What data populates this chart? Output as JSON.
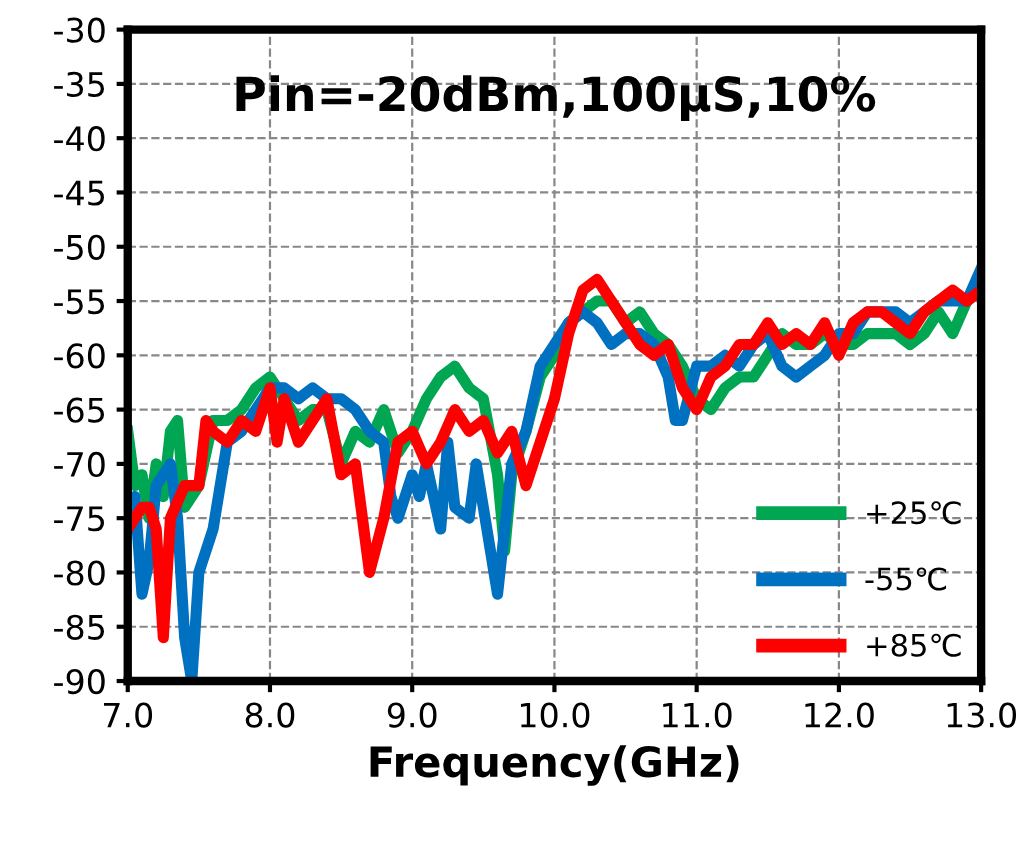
{
  "chart_data": {
    "type": "line",
    "xlabel": "Frequency(GHz)",
    "annotations": [
      "Pin=-20dBm,100µS,10%"
    ],
    "xlim": [
      7.0,
      13.0
    ],
    "ylim": [
      -90,
      -30
    ],
    "xticks": [
      {
        "value": 7,
        "label": "7.0"
      },
      {
        "value": 8,
        "label": "8.0"
      },
      {
        "value": 9,
        "label": "9.0"
      },
      {
        "value": 10,
        "label": "10.0"
      },
      {
        "value": 11,
        "label": "11.0"
      },
      {
        "value": 12,
        "label": "12.0"
      },
      {
        "value": 13,
        "label": "13.0"
      }
    ],
    "yticks": [
      -90,
      -85,
      -80,
      -75,
      -70,
      -65,
      -60,
      -55,
      -50,
      -45,
      -40,
      -35,
      -30
    ],
    "grid": true,
    "legend": "bottom right",
    "marker": "none",
    "line_style": "solid",
    "series": [
      {
        "name": "+25℃",
        "color": "#00a651",
        "x": [
          7.0,
          7.05,
          7.1,
          7.15,
          7.2,
          7.25,
          7.3,
          7.35,
          7.4,
          7.5,
          7.6,
          7.7,
          7.8,
          7.9,
          8.0,
          8.1,
          8.2,
          8.3,
          8.4,
          8.5,
          8.6,
          8.7,
          8.8,
          8.9,
          9.0,
          9.1,
          9.2,
          9.3,
          9.4,
          9.5,
          9.6,
          9.65,
          9.7,
          9.8,
          9.9,
          10.0,
          10.1,
          10.2,
          10.3,
          10.4,
          10.5,
          10.6,
          10.7,
          10.8,
          10.9,
          11.0,
          11.1,
          11.2,
          11.3,
          11.4,
          11.5,
          11.6,
          11.7,
          11.8,
          11.9,
          12.0,
          12.1,
          12.2,
          12.3,
          12.4,
          12.5,
          12.6,
          12.7,
          12.8,
          12.9,
          13.0
        ],
        "values": [
          -67,
          -72,
          -71,
          -75,
          -70,
          -73,
          -67,
          -66,
          -74,
          -72,
          -66,
          -66,
          -65,
          -63,
          -62,
          -64,
          -66,
          -65,
          -65,
          -70,
          -67,
          -68,
          -65,
          -69,
          -67,
          -64,
          -62,
          -61,
          -63,
          -64,
          -71,
          -78,
          -71,
          -67,
          -62,
          -60,
          -57,
          -56,
          -55,
          -55,
          -57,
          -56,
          -58,
          -59,
          -61,
          -64,
          -65,
          -63,
          -62,
          -62,
          -60,
          -58,
          -59,
          -59,
          -58,
          -59,
          -59,
          -58,
          -58,
          -58,
          -59,
          -58,
          -56,
          -58,
          -55,
          -54
        ]
      },
      {
        "name": "-55℃",
        "color": "#0070c0",
        "x": [
          7.0,
          7.05,
          7.1,
          7.15,
          7.2,
          7.3,
          7.35,
          7.4,
          7.45,
          7.5,
          7.6,
          7.7,
          7.8,
          7.9,
          8.0,
          8.1,
          8.2,
          8.3,
          8.4,
          8.5,
          8.6,
          8.7,
          8.8,
          8.85,
          8.9,
          9.0,
          9.05,
          9.1,
          9.2,
          9.25,
          9.3,
          9.4,
          9.45,
          9.6,
          9.7,
          9.8,
          9.9,
          10.0,
          10.1,
          10.2,
          10.3,
          10.4,
          10.5,
          10.6,
          10.7,
          10.8,
          10.85,
          10.9,
          11.0,
          11.1,
          11.2,
          11.3,
          11.4,
          11.5,
          11.6,
          11.7,
          11.8,
          11.9,
          12.0,
          12.1,
          12.2,
          12.3,
          12.4,
          12.5,
          12.6,
          12.7,
          12.8,
          12.9,
          13.0
        ],
        "values": [
          -74,
          -73,
          -82,
          -79,
          -72,
          -70,
          -75,
          -86,
          -90,
          -80,
          -76,
          -68,
          -67,
          -65,
          -63,
          -63,
          -64,
          -63,
          -64,
          -64,
          -65,
          -67,
          -68,
          -73,
          -75,
          -71,
          -73,
          -70,
          -76,
          -68,
          -74,
          -75,
          -70,
          -82,
          -70,
          -67,
          -61,
          -59,
          -57,
          -56,
          -57,
          -59,
          -58,
          -58,
          -59,
          -62,
          -66,
          -66,
          -61,
          -61,
          -60,
          -61,
          -59,
          -58,
          -61,
          -62,
          -61,
          -60,
          -58,
          -58,
          -56,
          -56,
          -56,
          -57,
          -56,
          -55,
          -55,
          -55,
          -52
        ]
      },
      {
        "name": "+85℃",
        "color": "#ff0000",
        "x": [
          7.0,
          7.1,
          7.15,
          7.2,
          7.25,
          7.3,
          7.4,
          7.5,
          7.55,
          7.6,
          7.7,
          7.8,
          7.9,
          8.0,
          8.05,
          8.1,
          8.2,
          8.3,
          8.4,
          8.5,
          8.6,
          8.7,
          8.8,
          8.9,
          9.0,
          9.1,
          9.2,
          9.3,
          9.4,
          9.5,
          9.6,
          9.7,
          9.8,
          9.9,
          10.0,
          10.1,
          10.2,
          10.3,
          10.4,
          10.5,
          10.6,
          10.7,
          10.8,
          10.9,
          11.0,
          11.1,
          11.2,
          11.3,
          11.4,
          11.5,
          11.6,
          11.7,
          11.8,
          11.9,
          12.0,
          12.1,
          12.2,
          12.3,
          12.4,
          12.5,
          12.6,
          12.7,
          12.8,
          12.9,
          13.0
        ],
        "values": [
          -76,
          -74,
          -74,
          -76,
          -86,
          -75,
          -72,
          -72,
          -66,
          -67,
          -68,
          -66,
          -67,
          -63,
          -68,
          -64,
          -68,
          -66,
          -64,
          -71,
          -70,
          -80,
          -75,
          -68,
          -67,
          -70,
          -68,
          -65,
          -67,
          -66,
          -69,
          -67,
          -72,
          -68,
          -64,
          -58,
          -54,
          -53,
          -55,
          -57,
          -59,
          -60,
          -59,
          -63,
          -65,
          -62,
          -61,
          -59,
          -59,
          -57,
          -59,
          -58,
          -59,
          -57,
          -60,
          -57,
          -56,
          -56,
          -57,
          -58,
          -56,
          -55,
          -54,
          -55,
          -54
        ]
      }
    ]
  }
}
